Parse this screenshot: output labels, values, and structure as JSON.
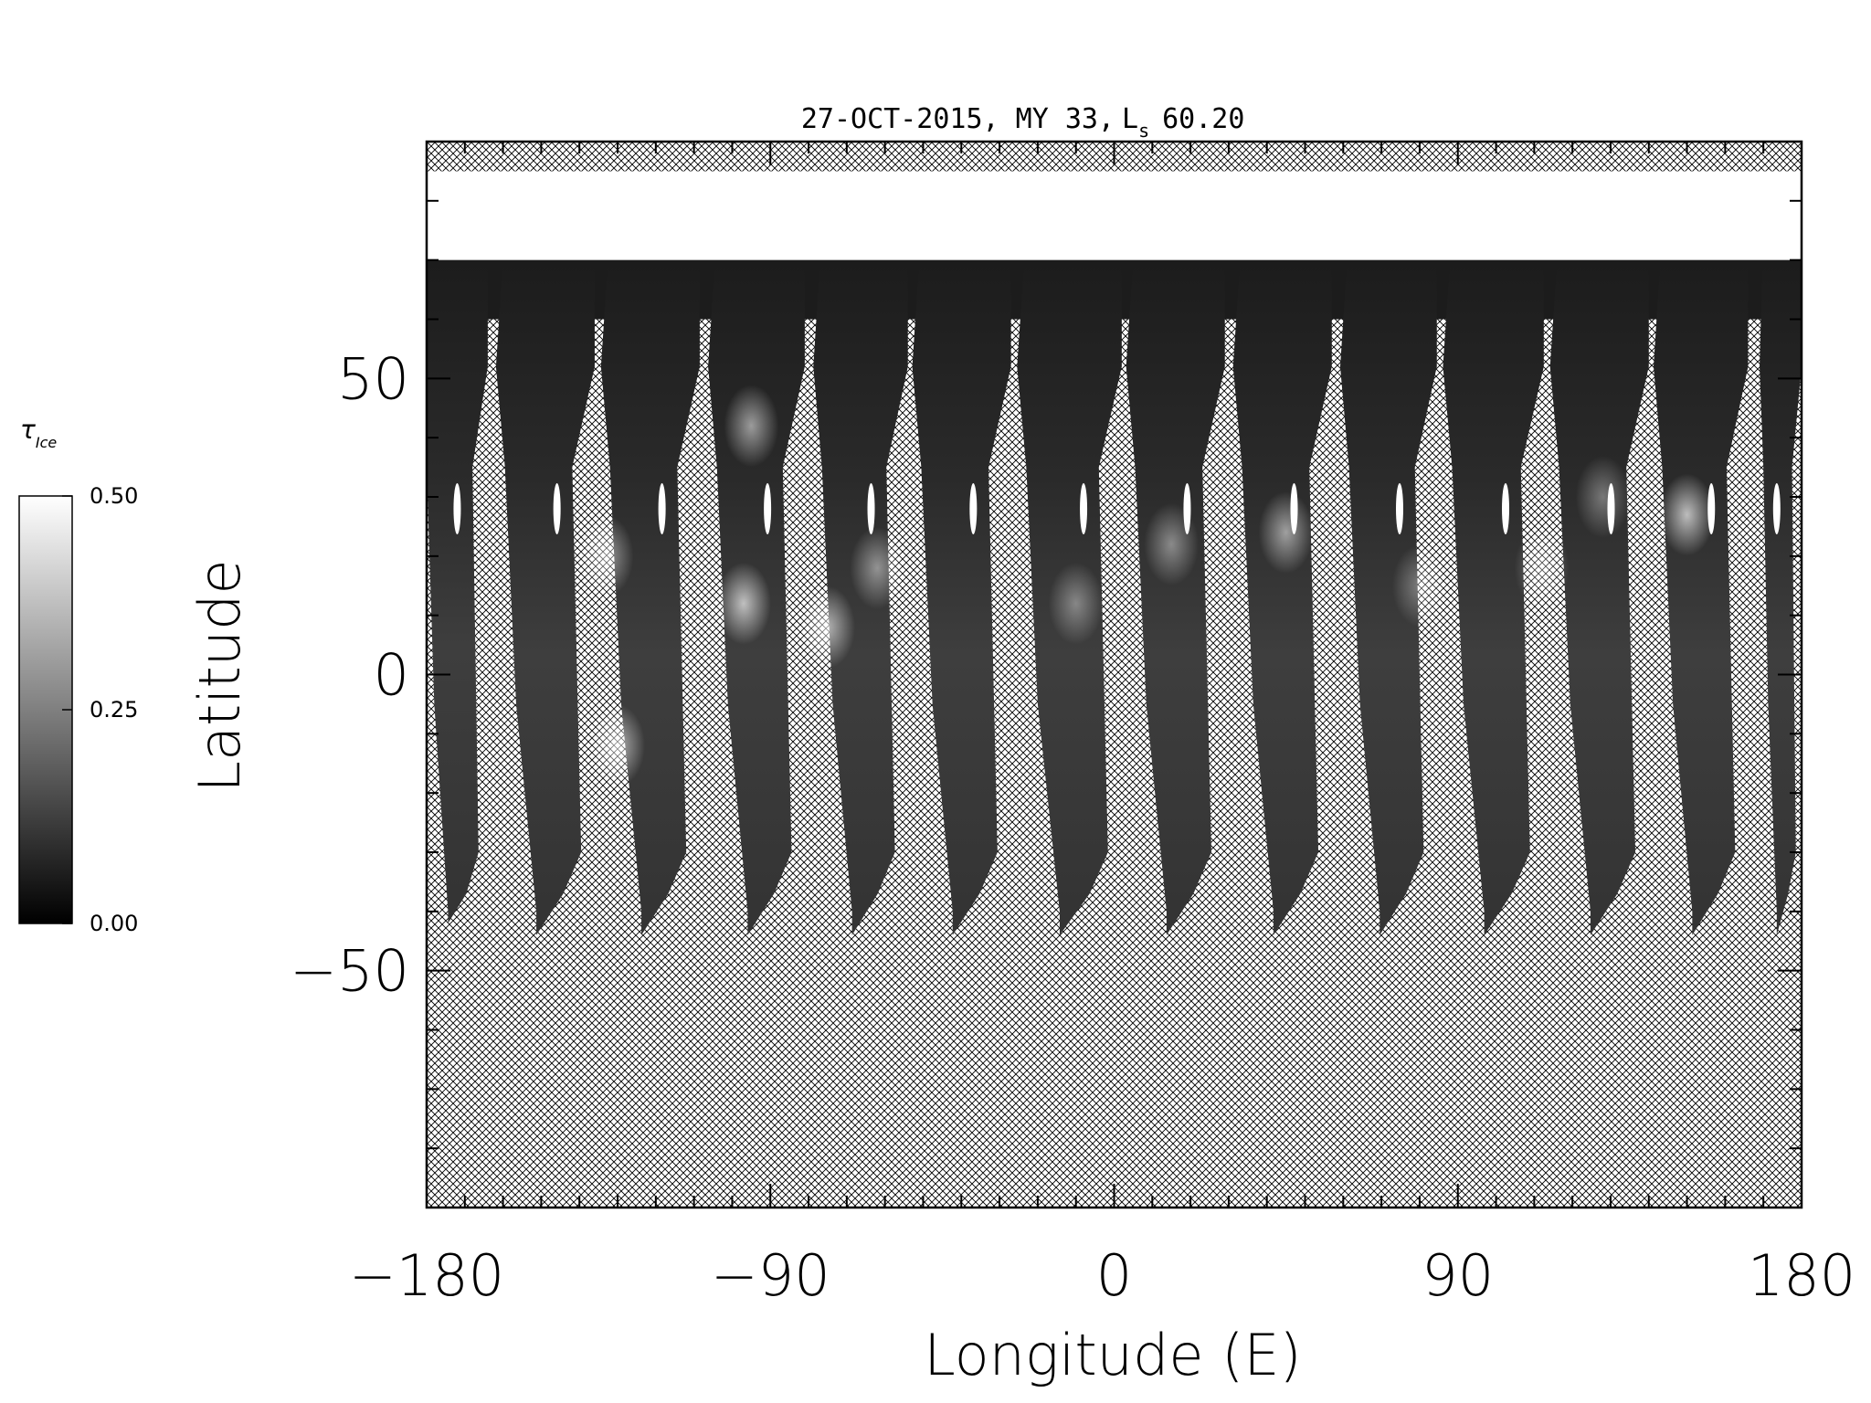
{
  "chart_data": {
    "type": "heatmap",
    "title": "27-OCT-2015, MY 33, ",
    "title_ls_symbol": "L",
    "title_ls_subscript": "s",
    "title_ls_value": "60.20",
    "xlabel": "Longitude (E)",
    "ylabel": "Latitude",
    "xlim": [
      -180,
      180
    ],
    "ylim": [
      -90,
      90
    ],
    "x_ticks": [
      -180,
      -90,
      0,
      90,
      180
    ],
    "x_tick_labels": [
      "−180",
      "−90",
      "0",
      "90",
      "180"
    ],
    "y_ticks": [
      -50,
      0,
      50
    ],
    "y_tick_labels": [
      "−50",
      "0",
      "50"
    ],
    "colorbar": {
      "label_symbol": "τ",
      "label_subscript": "Ice",
      "range": [
        0.0,
        0.5
      ],
      "ticks": [
        "0.00",
        "0.25",
        "0.50"
      ]
    },
    "polar_cap": {
      "lat_min": 70,
      "lat_max": 85,
      "value": 0.5
    },
    "no_data_hatched": true,
    "swaths": [
      {
        "west": -180.0,
        "east": -164.0,
        "south_lat": -42,
        "north_lat": 75
      },
      {
        "west": -159.5,
        "east": -136.0,
        "south_lat": -44,
        "north_lat": 75
      },
      {
        "west": -132.0,
        "east": -108.5,
        "south_lat": -44,
        "north_lat": 75
      },
      {
        "west": -104.0,
        "east": -81.0,
        "south_lat": -44,
        "north_lat": 75
      },
      {
        "west": -76.5,
        "east": -54.0,
        "south_lat": -44,
        "north_lat": 75
      },
      {
        "west": -50.5,
        "east": -27.0,
        "south_lat": -44,
        "north_lat": 75
      },
      {
        "west": -23.0,
        "east": 2.0,
        "south_lat": -44,
        "north_lat": 75
      },
      {
        "west": 5.5,
        "east": 29.0,
        "south_lat": -44,
        "north_lat": 75
      },
      {
        "west": 33.5,
        "east": 57.0,
        "south_lat": -44,
        "north_lat": 75
      },
      {
        "west": 61.5,
        "east": 84.5,
        "south_lat": -44,
        "north_lat": 75
      },
      {
        "west": 88.5,
        "east": 112.5,
        "south_lat": -44,
        "north_lat": 75
      },
      {
        "west": 116.5,
        "east": 140.0,
        "south_lat": -44,
        "north_lat": 75
      },
      {
        "west": 143.5,
        "east": 166.0,
        "south_lat": -44,
        "north_lat": 75
      },
      {
        "west": 170.0,
        "east": 180.0,
        "south_lat": -44,
        "north_lat": 75
      }
    ],
    "bright_features": [
      {
        "lon": -130,
        "lat": -12,
        "value": 0.34
      },
      {
        "lon": -133,
        "lat": 20,
        "value": 0.28
      },
      {
        "lon": -97,
        "lat": 12,
        "value": 0.38
      },
      {
        "lon": -75,
        "lat": 8,
        "value": 0.34
      },
      {
        "lon": -62,
        "lat": 18,
        "value": 0.26
      },
      {
        "lon": -95,
        "lat": 42,
        "value": 0.3
      },
      {
        "lon": -10,
        "lat": 12,
        "value": 0.22
      },
      {
        "lon": 15,
        "lat": 22,
        "value": 0.24
      },
      {
        "lon": 45,
        "lat": 24,
        "value": 0.3
      },
      {
        "lon": 80,
        "lat": 15,
        "value": 0.2
      },
      {
        "lon": 150,
        "lat": 27,
        "value": 0.38
      },
      {
        "lon": 112,
        "lat": 18,
        "value": 0.2
      },
      {
        "lon": 128,
        "lat": 30,
        "value": 0.2
      }
    ]
  }
}
